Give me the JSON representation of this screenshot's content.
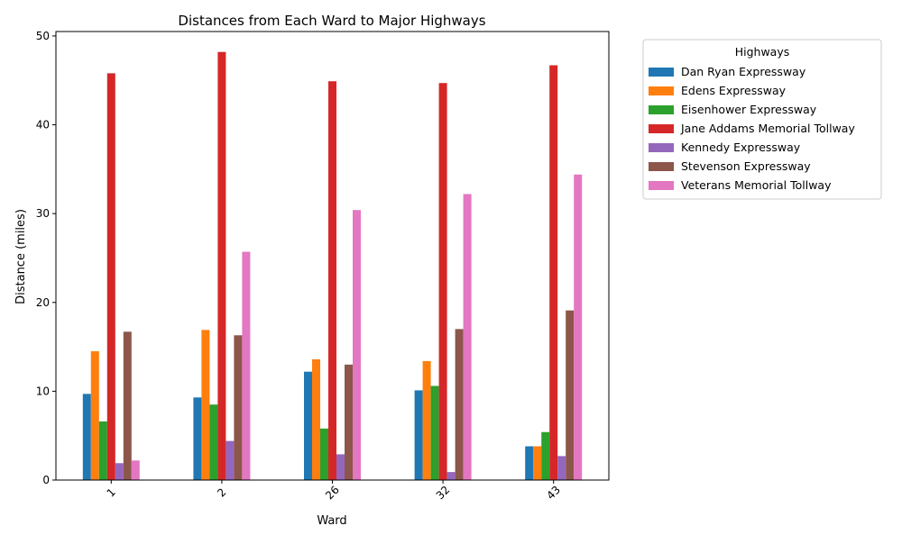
{
  "chart_data": {
    "type": "bar",
    "title": "Distances from Each Ward to Major Highways",
    "xlabel": "Ward",
    "ylabel": "Distance (miles)",
    "ylim": [
      0,
      50.5
    ],
    "yticks": [
      0,
      10,
      20,
      30,
      40,
      50
    ],
    "grid": false,
    "legend_title": "Highways",
    "legend_position": "outside-top-right",
    "categories": [
      "1",
      "2",
      "26",
      "32",
      "43"
    ],
    "series": [
      {
        "name": "Dan Ryan Expressway",
        "color": "#1f77b4",
        "values": [
          9.7,
          9.3,
          12.2,
          10.1,
          3.8
        ]
      },
      {
        "name": "Edens Expressway",
        "color": "#ff7f0e",
        "values": [
          14.5,
          16.9,
          13.6,
          13.4,
          3.8
        ]
      },
      {
        "name": "Eisenhower Expressway",
        "color": "#2ca02c",
        "values": [
          6.6,
          8.5,
          5.8,
          10.6,
          5.4
        ]
      },
      {
        "name": "Jane Addams Memorial Tollway",
        "color": "#d62728",
        "values": [
          45.8,
          48.2,
          44.9,
          44.7,
          46.7
        ]
      },
      {
        "name": "Kennedy Expressway",
        "color": "#9467bd",
        "values": [
          1.9,
          4.4,
          2.9,
          0.9,
          2.7
        ]
      },
      {
        "name": "Stevenson Expressway",
        "color": "#8c564b",
        "values": [
          16.7,
          16.3,
          13.0,
          17.0,
          19.1
        ]
      },
      {
        "name": "Veterans Memorial Tollway",
        "color": "#e377c2",
        "values": [
          2.2,
          25.7,
          30.4,
          32.2,
          34.4
        ]
      }
    ]
  }
}
